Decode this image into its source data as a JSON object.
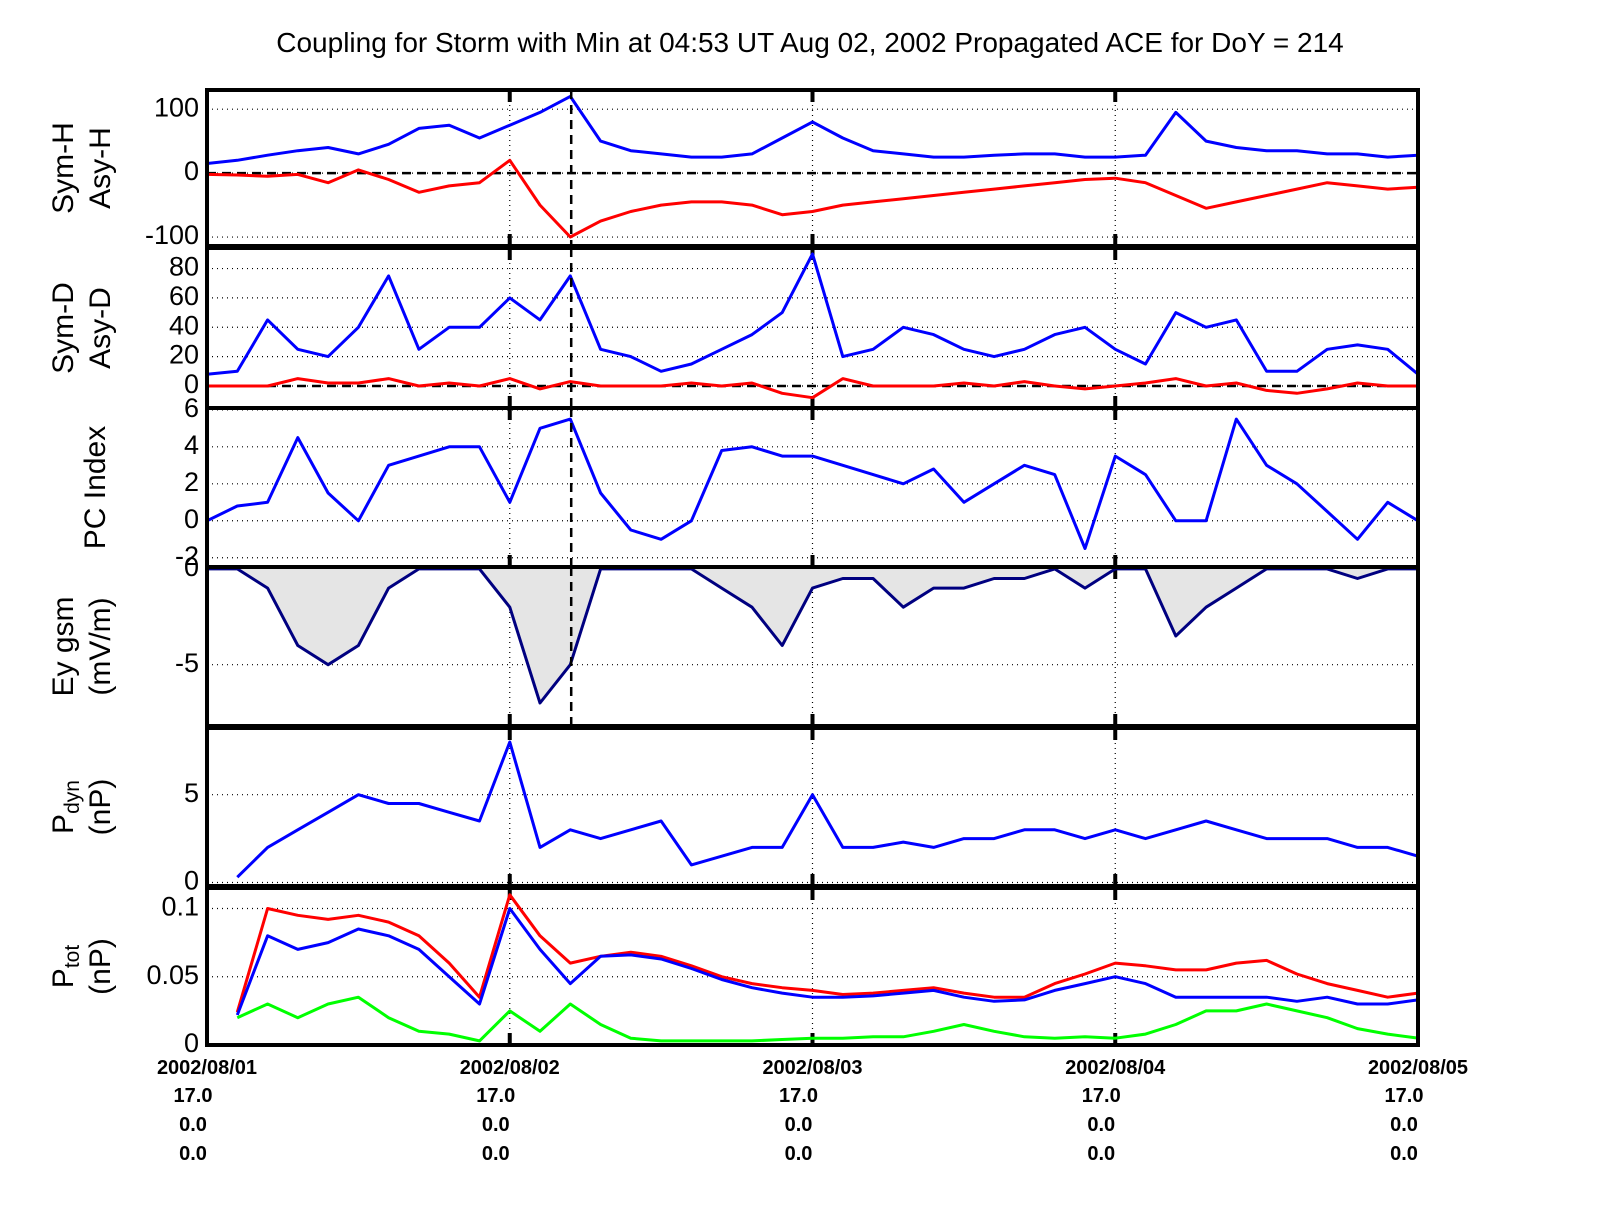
{
  "chart_data": [
    {
      "type": "line",
      "title": "Coupling for Storm with Min at 04:53 UT Aug 02, 2002  Propagated ACE for DoY = 214",
      "ylabel": [
        "Sym-H",
        "Asy-H"
      ],
      "ylim": [
        -114,
        130
      ],
      "yticks": [
        -100,
        0,
        100
      ],
      "grid": true,
      "zero_line": true,
      "vlines": [
        1.203
      ],
      "x": [
        0,
        0.1,
        0.2,
        0.3,
        0.4,
        0.5,
        0.6,
        0.7,
        0.8,
        0.9,
        1.0,
        1.1,
        1.2,
        1.3,
        1.4,
        1.5,
        1.6,
        1.7,
        1.8,
        1.9,
        2.0,
        2.1,
        2.2,
        2.3,
        2.4,
        2.5,
        2.6,
        2.7,
        2.8,
        2.9,
        3.0,
        3.1,
        3.2,
        3.3,
        3.4,
        3.5,
        3.6,
        3.7,
        3.8,
        3.9,
        4.0
      ],
      "series": [
        {
          "color": "#0000ff",
          "values": [
            15,
            20,
            28,
            35,
            40,
            30,
            45,
            70,
            75,
            55,
            75,
            95,
            120,
            50,
            35,
            30,
            25,
            25,
            30,
            55,
            80,
            55,
            35,
            30,
            25,
            25,
            28,
            30,
            30,
            25,
            25,
            28,
            95,
            50,
            40,
            35,
            35,
            30,
            30,
            25,
            28
          ]
        },
        {
          "color": "#ff0000",
          "values": [
            -2,
            -3,
            -5,
            -2,
            -15,
            5,
            -10,
            -30,
            -20,
            -15,
            20,
            -50,
            -100,
            -75,
            -60,
            -50,
            -45,
            -45,
            -50,
            -65,
            -60,
            -50,
            -45,
            -40,
            -35,
            -30,
            -25,
            -20,
            -15,
            -10,
            -8,
            -15,
            -35,
            -55,
            -45,
            -35,
            -25,
            -15,
            -20,
            -25,
            -22
          ]
        }
      ]
    },
    {
      "type": "line",
      "ylabel": [
        "Sym-D",
        "Asy-D"
      ],
      "ylim": [
        -15,
        94
      ],
      "yticks": [
        0,
        20,
        40,
        60,
        80
      ],
      "grid": true,
      "zero_line": true,
      "vlines": [
        1.203
      ],
      "x": [
        0,
        0.1,
        0.2,
        0.3,
        0.4,
        0.5,
        0.6,
        0.7,
        0.8,
        0.9,
        1.0,
        1.1,
        1.2,
        1.3,
        1.4,
        1.5,
        1.6,
        1.7,
        1.8,
        1.9,
        2.0,
        2.1,
        2.2,
        2.3,
        2.4,
        2.5,
        2.6,
        2.7,
        2.8,
        2.9,
        3.0,
        3.1,
        3.2,
        3.3,
        3.4,
        3.5,
        3.6,
        3.7,
        3.8,
        3.9,
        4.0
      ],
      "series": [
        {
          "color": "#0000ff",
          "values": [
            8,
            10,
            45,
            25,
            20,
            40,
            75,
            25,
            40,
            40,
            60,
            45,
            75,
            25,
            20,
            10,
            15,
            25,
            35,
            50,
            90,
            20,
            25,
            40,
            35,
            25,
            20,
            25,
            35,
            40,
            25,
            15,
            50,
            40,
            45,
            10,
            10,
            25,
            28,
            25,
            8
          ]
        },
        {
          "color": "#ff0000",
          "values": [
            0,
            0,
            0,
            5,
            2,
            2,
            5,
            0,
            2,
            0,
            5,
            -2,
            3,
            0,
            0,
            0,
            2,
            0,
            2,
            -5,
            -8,
            5,
            0,
            0,
            0,
            2,
            0,
            3,
            0,
            -2,
            0,
            2,
            5,
            0,
            2,
            -3,
            -5,
            -2,
            2,
            0,
            0
          ]
        }
      ]
    },
    {
      "type": "line",
      "ylabel": [
        "PC Index"
      ],
      "ylim": [
        -2.5,
        6.1
      ],
      "yticks": [
        -2,
        0,
        2,
        4,
        6
      ],
      "grid": true,
      "vlines": [
        1.203
      ],
      "x": [
        0,
        0.1,
        0.2,
        0.3,
        0.4,
        0.5,
        0.6,
        0.7,
        0.8,
        0.9,
        1.0,
        1.1,
        1.2,
        1.3,
        1.4,
        1.5,
        1.6,
        1.7,
        1.8,
        1.9,
        2.0,
        2.1,
        2.2,
        2.3,
        2.4,
        2.5,
        2.6,
        2.7,
        2.8,
        2.9,
        3.0,
        3.1,
        3.2,
        3.3,
        3.4,
        3.5,
        3.6,
        3.7,
        3.8,
        3.9,
        4.0
      ],
      "series": [
        {
          "color": "#0000ff",
          "values": [
            0,
            0.8,
            1.0,
            4.5,
            1.5,
            0,
            3,
            3.5,
            4,
            4,
            1,
            5.0,
            5.5,
            1.5,
            -0.5,
            -1,
            0,
            3.8,
            4,
            3.5,
            3.5,
            3,
            2.5,
            2,
            2.8,
            1,
            2,
            3,
            2.5,
            -1.5,
            3.5,
            2.5,
            0,
            0,
            5.5,
            3,
            2,
            0.5,
            -1,
            1,
            0
          ]
        }
      ]
    },
    {
      "type": "area",
      "ylabel": [
        "Ey gsm",
        "(mV/m)"
      ],
      "ylim": [
        -8.2,
        0.1
      ],
      "yticks": [
        -5,
        0
      ],
      "grid": true,
      "vlines": [
        1.203
      ],
      "fill": "#e5e5e5",
      "x": [
        0,
        0.1,
        0.2,
        0.3,
        0.4,
        0.5,
        0.6,
        0.7,
        0.8,
        0.9,
        1.0,
        1.1,
        1.2,
        1.3,
        1.4,
        1.5,
        1.6,
        1.7,
        1.8,
        1.9,
        2.0,
        2.1,
        2.2,
        2.3,
        2.4,
        2.5,
        2.6,
        2.7,
        2.8,
        2.9,
        3.0,
        3.1,
        3.2,
        3.3,
        3.4,
        3.5,
        3.6,
        3.7,
        3.8,
        3.9,
        4.0
      ],
      "series": [
        {
          "color": "#000080",
          "values": [
            0,
            0,
            -1,
            -4,
            -5,
            -4,
            -1,
            0,
            0,
            0,
            -2,
            -7,
            -5,
            0,
            0,
            0,
            0,
            -1,
            -2,
            -4,
            -1,
            -0.5,
            -0.5,
            -2,
            -1,
            -1,
            -0.5,
            -0.5,
            0,
            -1,
            0,
            0,
            -3.5,
            -2,
            -1,
            0,
            0,
            0,
            -0.5,
            0,
            0
          ]
        }
      ]
    },
    {
      "type": "line",
      "ylabel": [
        {
          "base": "P",
          "sub": "dyn"
        },
        "(nP)"
      ],
      "ylim": [
        -0.2,
        8.8
      ],
      "yticks": [
        0,
        5
      ],
      "grid": true,
      "x": [
        0,
        0.1,
        0.2,
        0.3,
        0.4,
        0.5,
        0.6,
        0.7,
        0.8,
        0.9,
        1.0,
        1.1,
        1.2,
        1.3,
        1.4,
        1.5,
        1.6,
        1.7,
        1.8,
        1.9,
        2.0,
        2.1,
        2.2,
        2.3,
        2.4,
        2.5,
        2.6,
        2.7,
        2.8,
        2.9,
        3.0,
        3.1,
        3.2,
        3.3,
        3.4,
        3.5,
        3.6,
        3.7,
        3.8,
        3.9,
        4.0
      ],
      "series": [
        {
          "color": "#0000ff",
          "values": [
            null,
            0.3,
            2,
            3,
            4,
            5,
            4.5,
            4.5,
            4,
            3.5,
            8,
            2,
            3,
            2.5,
            3,
            3.5,
            1,
            1.5,
            2,
            2,
            5,
            2,
            2,
            2.3,
            2,
            2.5,
            2.5,
            3,
            3,
            2.5,
            3,
            2.5,
            3,
            3.5,
            3,
            2.5,
            2.5,
            2.5,
            2,
            2,
            1.5
          ]
        }
      ]
    },
    {
      "type": "line",
      "ylabel": [
        {
          "base": "P",
          "sub": "tot"
        },
        "(nP)"
      ],
      "ylim": [
        0,
        0.115
      ],
      "yticks": [
        0,
        {
          "value": 0.05,
          "label": "0.05"
        },
        {
          "value": 0.1,
          "label": "0.1"
        }
      ],
      "grid": true,
      "xlim": [
        0,
        4
      ],
      "xticks": [
        {
          "value": 0,
          "label": "2002/08/01"
        },
        {
          "value": 1,
          "label": "2002/08/02"
        },
        {
          "value": 2,
          "label": "2002/08/03"
        },
        {
          "value": 3,
          "label": "2002/08/04"
        },
        {
          "value": 4,
          "label": "2002/08/05"
        }
      ],
      "xtick_rows": [
        [
          "17.0",
          "17.0",
          "17.0",
          "17.0",
          "17.0"
        ],
        [
          "0.0",
          "0.0",
          "0.0",
          "0.0",
          "0.0"
        ],
        [
          "0.0",
          "0.0",
          "0.0",
          "0.0",
          "0.0"
        ]
      ],
      "x": [
        0,
        0.1,
        0.2,
        0.3,
        0.4,
        0.5,
        0.6,
        0.7,
        0.8,
        0.9,
        1.0,
        1.1,
        1.2,
        1.3,
        1.4,
        1.5,
        1.6,
        1.7,
        1.8,
        1.9,
        2.0,
        2.1,
        2.2,
        2.3,
        2.4,
        2.5,
        2.6,
        2.7,
        2.8,
        2.9,
        3.0,
        3.1,
        3.2,
        3.3,
        3.4,
        3.5,
        3.6,
        3.7,
        3.8,
        3.9,
        4.0
      ],
      "series": [
        {
          "color": "#ff0000",
          "values": [
            null,
            0.024,
            0.1,
            0.095,
            0.092,
            0.095,
            0.09,
            0.08,
            0.06,
            0.035,
            0.11,
            0.08,
            0.06,
            0.065,
            0.068,
            0.065,
            0.058,
            0.05,
            0.045,
            0.042,
            0.04,
            0.037,
            0.038,
            0.04,
            0.042,
            0.038,
            0.035,
            0.035,
            0.045,
            0.052,
            0.06,
            0.058,
            0.055,
            0.055,
            0.06,
            0.062,
            0.052,
            0.045,
            0.04,
            0.035,
            0.038
          ]
        },
        {
          "color": "#0000ff",
          "values": [
            null,
            0.022,
            0.08,
            0.07,
            0.075,
            0.085,
            0.08,
            0.07,
            0.05,
            0.03,
            0.1,
            0.07,
            0.045,
            0.065,
            0.066,
            0.063,
            0.056,
            0.048,
            0.042,
            0.038,
            0.035,
            0.035,
            0.036,
            0.038,
            0.04,
            0.035,
            0.032,
            0.033,
            0.04,
            0.045,
            0.05,
            0.045,
            0.035,
            0.035,
            0.035,
            0.035,
            0.032,
            0.035,
            0.03,
            0.03,
            0.033
          ]
        },
        {
          "color": "#00ff00",
          "values": [
            null,
            0.02,
            0.03,
            0.02,
            0.03,
            0.035,
            0.02,
            0.01,
            0.008,
            0.003,
            0.025,
            0.01,
            0.03,
            0.015,
            0.005,
            0.003,
            0.003,
            0.003,
            0.003,
            0.004,
            0.005,
            0.005,
            0.006,
            0.006,
            0.01,
            0.015,
            0.01,
            0.006,
            0.005,
            0.006,
            0.005,
            0.008,
            0.015,
            0.025,
            0.025,
            0.03,
            0.025,
            0.02,
            0.012,
            0.008,
            0.005
          ]
        }
      ]
    }
  ]
}
